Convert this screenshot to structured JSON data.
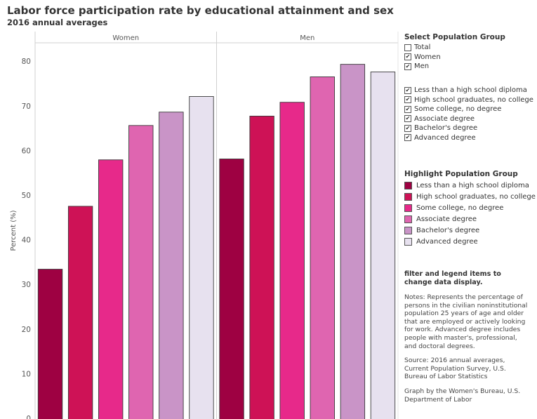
{
  "header": {
    "title": "Labor force participation rate by educational attainment and sex",
    "subtitle": "2016 annual averages"
  },
  "chart_data": {
    "type": "bar",
    "ylabel": "Percent (%)",
    "ylim": [
      0,
      85
    ],
    "yticks": [
      0,
      10,
      20,
      30,
      40,
      50,
      60,
      70,
      80
    ],
    "grid": false,
    "panels": [
      "Women",
      "Men"
    ],
    "categories": [
      "Less than a high school diploma",
      "High school graduates, no college",
      "Some college, no degree",
      "Associate degree",
      "Bachelor's degree",
      "Advanced degree"
    ],
    "series": [
      {
        "name": "Women",
        "values": [
          33.4,
          47.5,
          57.9,
          65.6,
          68.6,
          72.1
        ]
      },
      {
        "name": "Men",
        "values": [
          58.1,
          67.7,
          70.8,
          76.5,
          79.3,
          77.6
        ]
      }
    ],
    "colors": [
      "#9e0142",
      "#ce1256",
      "#e7298a",
      "#df65b0",
      "#c994c7",
      "#e7e1ef"
    ]
  },
  "filters": {
    "population_heading": "Select Population Group",
    "population_items": [
      {
        "label": "Total",
        "checked": false
      },
      {
        "label": "Women",
        "checked": true
      },
      {
        "label": "Men",
        "checked": true
      }
    ],
    "education_items": [
      {
        "label": "Less than a high school diploma",
        "checked": true
      },
      {
        "label": "High school graduates, no college",
        "checked": true
      },
      {
        "label": "Some college, no degree",
        "checked": true
      },
      {
        "label": "Associate degree",
        "checked": true
      },
      {
        "label": "Bachelor's degree",
        "checked": true
      },
      {
        "label": "Advanced degree",
        "checked": true
      }
    ],
    "checkmark": "✔"
  },
  "legend": {
    "heading": "Highlight Population Group",
    "items": [
      "Less than a high school diploma",
      "High school graduates, no college",
      "Some college, no degree",
      "Associate degree",
      "Bachelor's degree",
      "Advanced degree"
    ]
  },
  "notes": {
    "instruction": "filter and legend items to change data display.",
    "notes_text": "Notes: Represents the percentage of persons in the civilian noninstitutional population 25 years of age and older that are employed or actively looking for work. Advanced degree includes people with master's, professional, and doctoral degrees.",
    "source_text": "Source: 2016 annual averages, Current Population Survey, U.S. Bureau of Labor Statistics",
    "credit_text": "Graph by the Women's Bureau, U.S. Department of Labor"
  }
}
